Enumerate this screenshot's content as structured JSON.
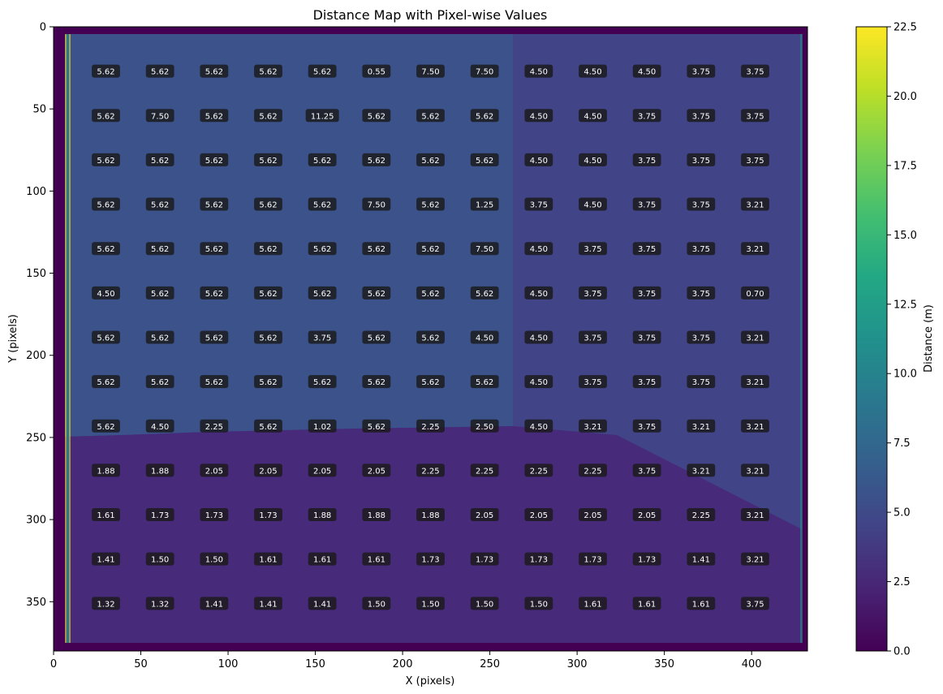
{
  "chart_data": {
    "type": "heatmap",
    "title": "Distance Map with Pixel-wise Values",
    "xlabel": "X (pixels)",
    "ylabel": "Y (pixels)",
    "xlim": [
      0,
      432
    ],
    "ylim": [
      0,
      380
    ],
    "y_inverted": true,
    "xticks": [
      0,
      50,
      100,
      150,
      200,
      250,
      300,
      350,
      400
    ],
    "yticks": [
      0,
      50,
      100,
      150,
      200,
      250,
      300,
      350
    ],
    "colorbar": {
      "label": "Distance (m)",
      "range": [
        0,
        22.5
      ],
      "ticks": [
        "0.0",
        "2.5",
        "5.0",
        "7.5",
        "10.0",
        "12.5",
        "15.0",
        "17.5",
        "20.0",
        "22.5"
      ],
      "colormap": "viridis"
    },
    "grid": false,
    "x_positions": [
      30,
      61,
      92,
      123,
      154,
      185,
      216,
      247,
      278,
      309,
      340,
      371,
      402
    ],
    "y_positions": [
      27,
      54,
      81,
      108,
      135,
      162,
      189,
      216,
      243,
      270,
      297,
      324,
      351
    ],
    "values": [
      [
        "5.62",
        "5.62",
        "5.62",
        "5.62",
        "5.62",
        "0.55",
        "7.50",
        "7.50",
        "4.50",
        "4.50",
        "4.50",
        "3.75",
        "3.75"
      ],
      [
        "5.62",
        "7.50",
        "5.62",
        "5.62",
        "11.25",
        "5.62",
        "5.62",
        "5.62",
        "4.50",
        "4.50",
        "3.75",
        "3.75",
        "3.75"
      ],
      [
        "5.62",
        "5.62",
        "5.62",
        "5.62",
        "5.62",
        "5.62",
        "5.62",
        "5.62",
        "4.50",
        "4.50",
        "3.75",
        "3.75",
        "3.75"
      ],
      [
        "5.62",
        "5.62",
        "5.62",
        "5.62",
        "5.62",
        "7.50",
        "5.62",
        "1.25",
        "3.75",
        "4.50",
        "3.75",
        "3.75",
        "3.21"
      ],
      [
        "5.62",
        "5.62",
        "5.62",
        "5.62",
        "5.62",
        "5.62",
        "5.62",
        "7.50",
        "4.50",
        "3.75",
        "3.75",
        "3.75",
        "3.21"
      ],
      [
        "4.50",
        "5.62",
        "5.62",
        "5.62",
        "5.62",
        "5.62",
        "5.62",
        "5.62",
        "4.50",
        "3.75",
        "3.75",
        "3.75",
        "0.70"
      ],
      [
        "5.62",
        "5.62",
        "5.62",
        "5.62",
        "3.75",
        "5.62",
        "5.62",
        "4.50",
        "4.50",
        "3.75",
        "3.75",
        "3.75",
        "3.21"
      ],
      [
        "5.62",
        "5.62",
        "5.62",
        "5.62",
        "5.62",
        "5.62",
        "5.62",
        "5.62",
        "4.50",
        "3.75",
        "3.75",
        "3.75",
        "3.21"
      ],
      [
        "5.62",
        "4.50",
        "2.25",
        "5.62",
        "1.02",
        "5.62",
        "2.25",
        "2.50",
        "4.50",
        "3.21",
        "3.75",
        "3.21",
        "3.21"
      ],
      [
        "1.88",
        "1.88",
        "2.05",
        "2.05",
        "2.05",
        "2.05",
        "2.25",
        "2.25",
        "2.25",
        "2.25",
        "3.75",
        "3.21",
        "3.21"
      ],
      [
        "1.61",
        "1.73",
        "1.73",
        "1.73",
        "1.88",
        "1.88",
        "1.88",
        "2.05",
        "2.05",
        "2.05",
        "2.05",
        "2.25",
        "3.21"
      ],
      [
        "1.41",
        "1.50",
        "1.50",
        "1.61",
        "1.61",
        "1.61",
        "1.73",
        "1.73",
        "1.73",
        "1.73",
        "1.73",
        "1.41",
        "3.21"
      ],
      [
        "1.32",
        "1.32",
        "1.41",
        "1.41",
        "1.41",
        "1.50",
        "1.50",
        "1.50",
        "1.50",
        "1.61",
        "1.61",
        "1.61",
        "3.75"
      ]
    ]
  }
}
